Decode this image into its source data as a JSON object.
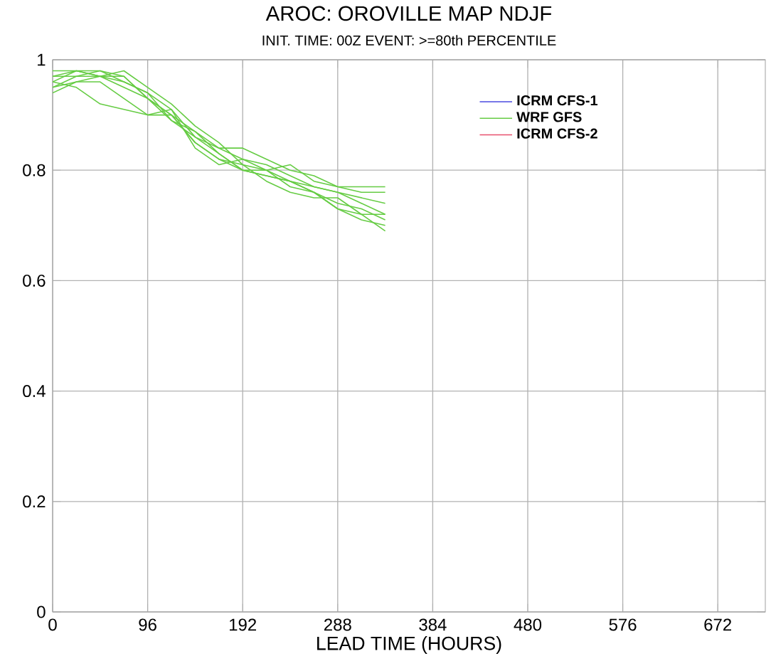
{
  "chart_data": {
    "type": "line",
    "title": "AROC: OROVILLE MAP NDJF",
    "subtitle": "INIT. TIME: 00Z EVENT: >=80th PERCENTILE",
    "xlabel": "LEAD TIME (HOURS)",
    "x": [
      0,
      24,
      48,
      72,
      96,
      120,
      144,
      168,
      192,
      216,
      240,
      264,
      288,
      312,
      336
    ],
    "xlim": [
      0,
      720
    ],
    "ylim": [
      0,
      1
    ],
    "xticks": [
      0,
      96,
      192,
      288,
      384,
      480,
      576,
      672
    ],
    "yticks": [
      0,
      0.2,
      0.4,
      0.6,
      0.8,
      1
    ],
    "grid": true,
    "legend": "top right",
    "marker": "none",
    "line_style": "solid",
    "series": [
      {
        "name": "ICRM CFS-1",
        "color": "#4a4ae0",
        "values": [
          null,
          null,
          null,
          null,
          null,
          null,
          null,
          null,
          null,
          null,
          null,
          null,
          null,
          null,
          null
        ]
      },
      {
        "name": "WRF GFS",
        "color": "#66cc44",
        "values": [
          0.97,
          0.98,
          0.98,
          0.97,
          0.93,
          0.9,
          0.87,
          0.84,
          0.82,
          0.81,
          0.79,
          0.77,
          0.76,
          0.74,
          0.72
        ]
      },
      {
        "name": "ICRM CFS-2",
        "color": "#e8506e",
        "values": [
          null,
          null,
          null,
          null,
          null,
          null,
          null,
          null,
          null,
          null,
          null,
          null,
          null,
          null,
          null
        ]
      },
      {
        "color": "#66cc44",
        "values": [
          0.95,
          0.97,
          0.97,
          0.96,
          0.94,
          0.91,
          0.86,
          0.83,
          0.8,
          0.79,
          0.78,
          0.76,
          0.73,
          0.71,
          0.7
        ]
      },
      {
        "color": "#66cc44",
        "values": [
          0.96,
          0.98,
          0.97,
          0.98,
          0.95,
          0.92,
          0.88,
          0.85,
          0.81,
          0.8,
          0.81,
          0.78,
          0.77,
          0.76,
          0.76
        ]
      },
      {
        "color": "#66cc44",
        "values": [
          0.94,
          0.96,
          0.96,
          0.93,
          0.9,
          0.9,
          0.85,
          0.82,
          0.81,
          0.78,
          0.76,
          0.75,
          0.75,
          0.72,
          0.69
        ]
      },
      {
        "color": "#66cc44",
        "values": [
          0.96,
          0.95,
          0.92,
          0.91,
          0.9,
          0.91,
          0.84,
          0.81,
          0.82,
          0.8,
          0.78,
          0.76,
          0.74,
          0.73,
          0.71
        ]
      },
      {
        "color": "#66cc44",
        "values": [
          0.97,
          0.97,
          0.98,
          0.96,
          0.94,
          0.89,
          0.86,
          0.84,
          0.84,
          0.82,
          0.8,
          0.79,
          0.77,
          0.77,
          0.77
        ]
      },
      {
        "color": "#66cc44",
        "values": [
          0.95,
          0.96,
          0.97,
          0.97,
          0.93,
          0.89,
          0.87,
          0.83,
          0.8,
          0.8,
          0.77,
          0.76,
          0.73,
          0.72,
          0.72
        ]
      },
      {
        "color": "#66cc44",
        "values": [
          0.98,
          0.98,
          0.97,
          0.95,
          0.93,
          0.9,
          0.85,
          0.82,
          0.8,
          0.79,
          0.78,
          0.77,
          0.76,
          0.75,
          0.74
        ]
      }
    ]
  }
}
